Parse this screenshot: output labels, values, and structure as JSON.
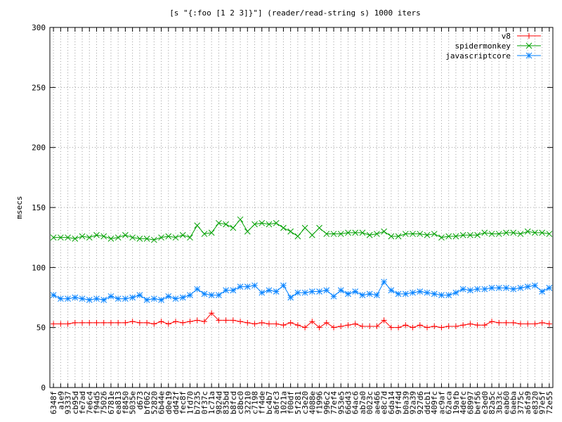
{
  "chart_data": {
    "type": "line",
    "title": "[s \"{:foo [1 2 3]}\"] (reader/read-string s) 1000 iters",
    "xlabel": "",
    "ylabel": "msecs",
    "ylim": [
      0,
      300
    ],
    "yticks": [
      0,
      50,
      100,
      150,
      200,
      250,
      300
    ],
    "grid": true,
    "legend_position": "top-right",
    "categories": [
      "6348f",
      "a1e9",
      "93337",
      "cb95d",
      "fe7ad",
      "7e6c4",
      "f94d5",
      "75026",
      "6781e",
      "ea813",
      "f8450",
      "5035e",
      "d673",
      "bf062",
      "52820",
      "6b44e",
      "d0e19",
      "dd42f",
      "fec8f",
      "1fd70",
      "b7235",
      "0f37c",
      "1c71a",
      "9824d",
      "835bd",
      "b8fcd",
      "c8bc0",
      "32210",
      "c7198",
      "ff4de",
      "bc4b7",
      "a6fc3",
      "1021a",
      "f00df",
      "5f281",
      "c3e20",
      "4088e",
      "f1996",
      "996c2",
      "77ef4",
      "953e5",
      "66d43",
      "64ac6",
      "ab7a0",
      "0023c",
      "ae466",
      "e8c7d",
      "6da14",
      "9ff4d",
      "b0a39",
      "92a39",
      "927d6",
      "ddcb1",
      "409fc",
      "ac9af",
      "62aca",
      "19afb",
      "4defc",
      "68997",
      "bef56",
      "e3ed0",
      "82a5c",
      "3b33c",
      "eab60",
      "6aeba",
      "3775c",
      "a6fa9",
      "e8320",
      "97e5f",
      "72e55"
    ],
    "series": [
      {
        "name": "v8",
        "color": "#ff0000",
        "marker": "plus",
        "values": [
          53,
          53,
          53,
          54,
          54,
          54,
          54,
          54,
          54,
          54,
          54,
          55,
          54,
          54,
          53,
          55,
          53,
          55,
          54,
          55,
          56,
          55,
          62,
          56,
          56,
          56,
          55,
          54,
          53,
          54,
          53,
          53,
          52,
          54,
          52,
          50,
          55,
          50,
          54,
          50,
          51,
          52,
          53,
          51,
          51,
          51,
          56,
          50,
          50,
          52,
          50,
          52,
          50,
          51,
          50,
          51,
          51,
          52,
          53,
          52,
          52,
          55,
          54,
          54,
          54,
          53,
          53,
          53,
          54,
          53
        ]
      },
      {
        "name": "spidermonkey",
        "color": "#00a000",
        "marker": "x",
        "values": [
          125,
          125,
          125,
          124,
          126,
          125,
          127,
          126,
          124,
          125,
          127,
          125,
          124,
          124,
          123,
          125,
          126,
          125,
          127,
          125,
          135,
          128,
          129,
          137,
          136,
          133,
          140,
          130,
          136,
          137,
          136,
          137,
          133,
          130,
          126,
          133,
          127,
          133,
          128,
          128,
          128,
          129,
          129,
          129,
          127,
          128,
          130,
          126,
          126,
          128,
          128,
          128,
          127,
          128,
          125,
          126,
          126,
          127,
          127,
          127,
          129,
          128,
          128,
          129,
          129,
          128,
          130,
          129,
          129,
          128
        ]
      },
      {
        "name": "javascriptcore",
        "color": "#0080ff",
        "marker": "star",
        "values": [
          77,
          74,
          74,
          75,
          74,
          73,
          74,
          73,
          76,
          74,
          74,
          75,
          77,
          73,
          74,
          73,
          76,
          74,
          75,
          77,
          82,
          78,
          77,
          77,
          81,
          81,
          84,
          84,
          85,
          79,
          81,
          80,
          85,
          75,
          79,
          79,
          80,
          80,
          81,
          76,
          81,
          78,
          80,
          77,
          78,
          77,
          88,
          81,
          78,
          78,
          79,
          80,
          79,
          78,
          77,
          77,
          79,
          82,
          81,
          82,
          82,
          83,
          83,
          83,
          82,
          83,
          84,
          85,
          80,
          83
        ]
      }
    ]
  }
}
